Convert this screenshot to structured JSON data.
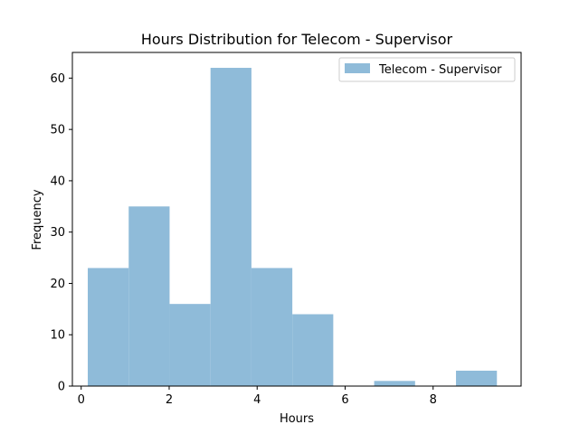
{
  "chart_data": {
    "type": "bar",
    "title": "Hours Distribution for Telecom - Supervisor",
    "xlabel": "Hours",
    "ylabel": "Frequency",
    "xlim": [
      -0.2,
      10.0
    ],
    "ylim": [
      0,
      65
    ],
    "xticks": [
      0,
      2,
      4,
      6,
      8
    ],
    "yticks": [
      0,
      10,
      20,
      30,
      40,
      50,
      60
    ],
    "grid": false,
    "legend_position": "top-right",
    "bar_color": "#8fbbd9",
    "bin_edges": [
      0.15,
      1.08,
      2.01,
      2.94,
      3.87,
      4.8,
      5.73,
      6.66,
      7.59,
      8.52,
      9.45
    ],
    "series": [
      {
        "name": "Telecom - Supervisor",
        "values": [
          23,
          35,
          16,
          62,
          23,
          14,
          0,
          1,
          0,
          3
        ]
      }
    ]
  }
}
